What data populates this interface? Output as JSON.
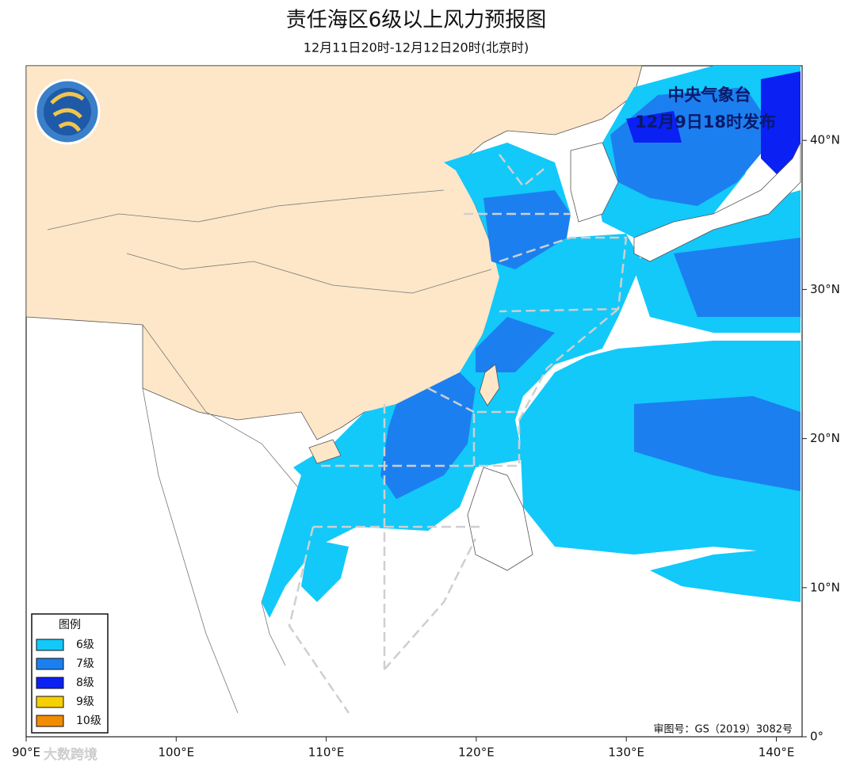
{
  "header": {
    "title": "责任海区6级以上风力预报图",
    "subtitle": "12月11日20时-12月12日20时(北京时)"
  },
  "issuer": {
    "agency": "中央气象台",
    "time": "12月9日18时发布"
  },
  "legend": {
    "title": "图例",
    "items": [
      {
        "label": "6级",
        "color": "#12c9fa"
      },
      {
        "label": "7级",
        "color": "#1c7ff0"
      },
      {
        "label": "8级",
        "color": "#0b20f2"
      },
      {
        "label": "9级",
        "color": "#f7d000"
      },
      {
        "label": "10级",
        "color": "#f28c00"
      }
    ]
  },
  "axes": {
    "x_ticks": [
      {
        "value": 90,
        "label": "90°E"
      },
      {
        "value": 100,
        "label": "100°E"
      },
      {
        "value": 110,
        "label": "110°E"
      },
      {
        "value": 120,
        "label": "120°E"
      },
      {
        "value": 130,
        "label": "130°E"
      },
      {
        "value": 140,
        "label": "140°E"
      }
    ],
    "y_ticks": [
      {
        "value": 0,
        "label": "0°"
      },
      {
        "value": 10,
        "label": "10°N"
      },
      {
        "value": 20,
        "label": "20°N"
      },
      {
        "value": 30,
        "label": "30°N"
      },
      {
        "value": 40,
        "label": "40°N"
      }
    ]
  },
  "footer": {
    "approval": "审图号：GS（2019）3082号",
    "watermark": "大数跨境"
  }
}
